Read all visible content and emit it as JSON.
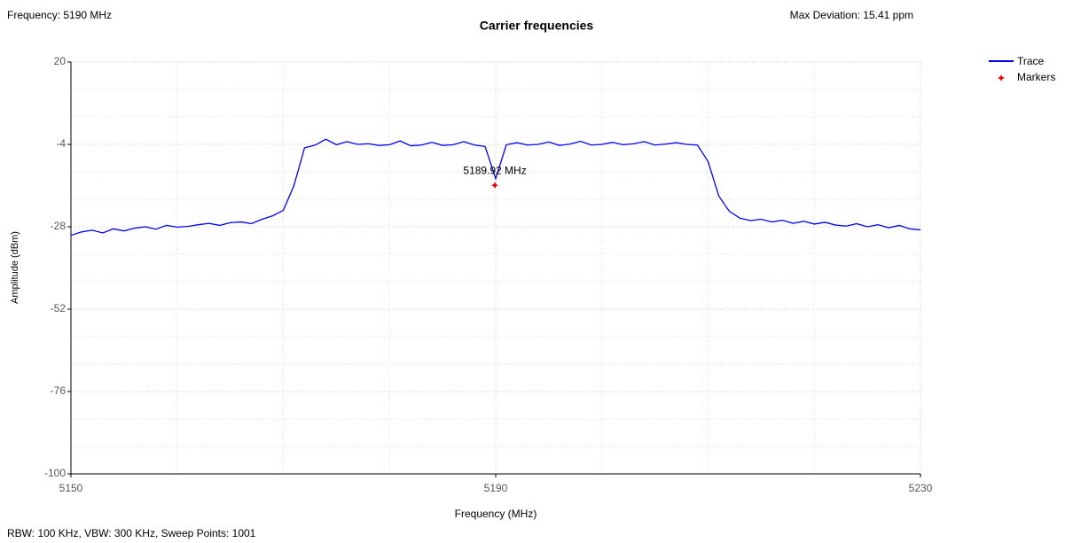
{
  "chart_data": {
    "type": "line",
    "title": "Carrier frequencies",
    "info_left": "Frequency: 5190 MHz",
    "info_right": "Max Deviation: 15.41 ppm",
    "footer": "RBW: 100 KHz,  VBW: 300 KHz,  Sweep Points: 1001",
    "x_label": "Frequency (MHz)",
    "y_label": "Amplitude (dBm)",
    "xlim": [
      5150,
      5230
    ],
    "ylim": [
      -100,
      20
    ],
    "xticks": [
      5150,
      5190,
      5230
    ],
    "yticks": [
      20,
      -4,
      -28,
      -52,
      -76,
      -100
    ],
    "xminor": [
      5160,
      5170,
      5180,
      5200,
      5210,
      5220
    ],
    "yminor": [
      12,
      4,
      -12,
      -20,
      -36,
      -44,
      -60,
      -68,
      -84,
      -92
    ],
    "grid": true,
    "legend": "top-right",
    "x": [
      5150,
      5151,
      5152,
      5153,
      5154,
      5155,
      5156,
      5157,
      5158,
      5159,
      5160,
      5161,
      5162,
      5163,
      5164,
      5165,
      5166,
      5167,
      5168,
      5169,
      5170,
      5171,
      5172,
      5173,
      5174,
      5175,
      5176,
      5177,
      5178,
      5179,
      5180,
      5181,
      5182,
      5183,
      5184,
      5185,
      5186,
      5187,
      5188,
      5189,
      5190,
      5191,
      5192,
      5193,
      5194,
      5195,
      5196,
      5197,
      5198,
      5199,
      5200,
      5201,
      5202,
      5203,
      5204,
      5205,
      5206,
      5207,
      5208,
      5209,
      5210,
      5211,
      5212,
      5213,
      5214,
      5215,
      5216,
      5217,
      5218,
      5219,
      5220,
      5221,
      5222,
      5223,
      5224,
      5225,
      5226,
      5227,
      5228,
      5229,
      5230
    ],
    "series": [
      {
        "name": "Trace",
        "color": "#0000ee",
        "values": [
          -30.5,
          -29.5,
          -29,
          -29.8,
          -28.6,
          -29.2,
          -28.4,
          -28,
          -28.7,
          -27.6,
          -28.1,
          -27.9,
          -27.4,
          -27,
          -27.6,
          -26.8,
          -26.6,
          -27.1,
          -25.8,
          -24.8,
          -23.2,
          -16,
          -5,
          -4.2,
          -2.5,
          -4.1,
          -3.2,
          -4,
          -3.8,
          -4.3,
          -4.1,
          -3,
          -4.4,
          -4.2,
          -3.4,
          -4.3,
          -4.1,
          -3.2,
          -4.2,
          -4.6,
          -14,
          -4.1,
          -3.5,
          -4.2,
          -4,
          -3.3,
          -4.3,
          -3.9,
          -3.1,
          -4.2,
          -4,
          -3.4,
          -4.1,
          -3.8,
          -3.2,
          -4.2,
          -3.9,
          -3.5,
          -4,
          -4.2,
          -9,
          -19,
          -23.5,
          -25.5,
          -26.2,
          -25.8,
          -26.6,
          -26.1,
          -27,
          -26.4,
          -27.2,
          -26.7,
          -27.5,
          -27.8,
          -27.1,
          -28,
          -27.4,
          -28.3,
          -27.6,
          -28.6,
          -28.9
        ]
      },
      {
        "name": "Markers",
        "color": "#ee0000",
        "x": [
          5189.92
        ],
        "values": [
          -15.9
        ],
        "labels": [
          "5189.92 MHz"
        ]
      }
    ]
  }
}
